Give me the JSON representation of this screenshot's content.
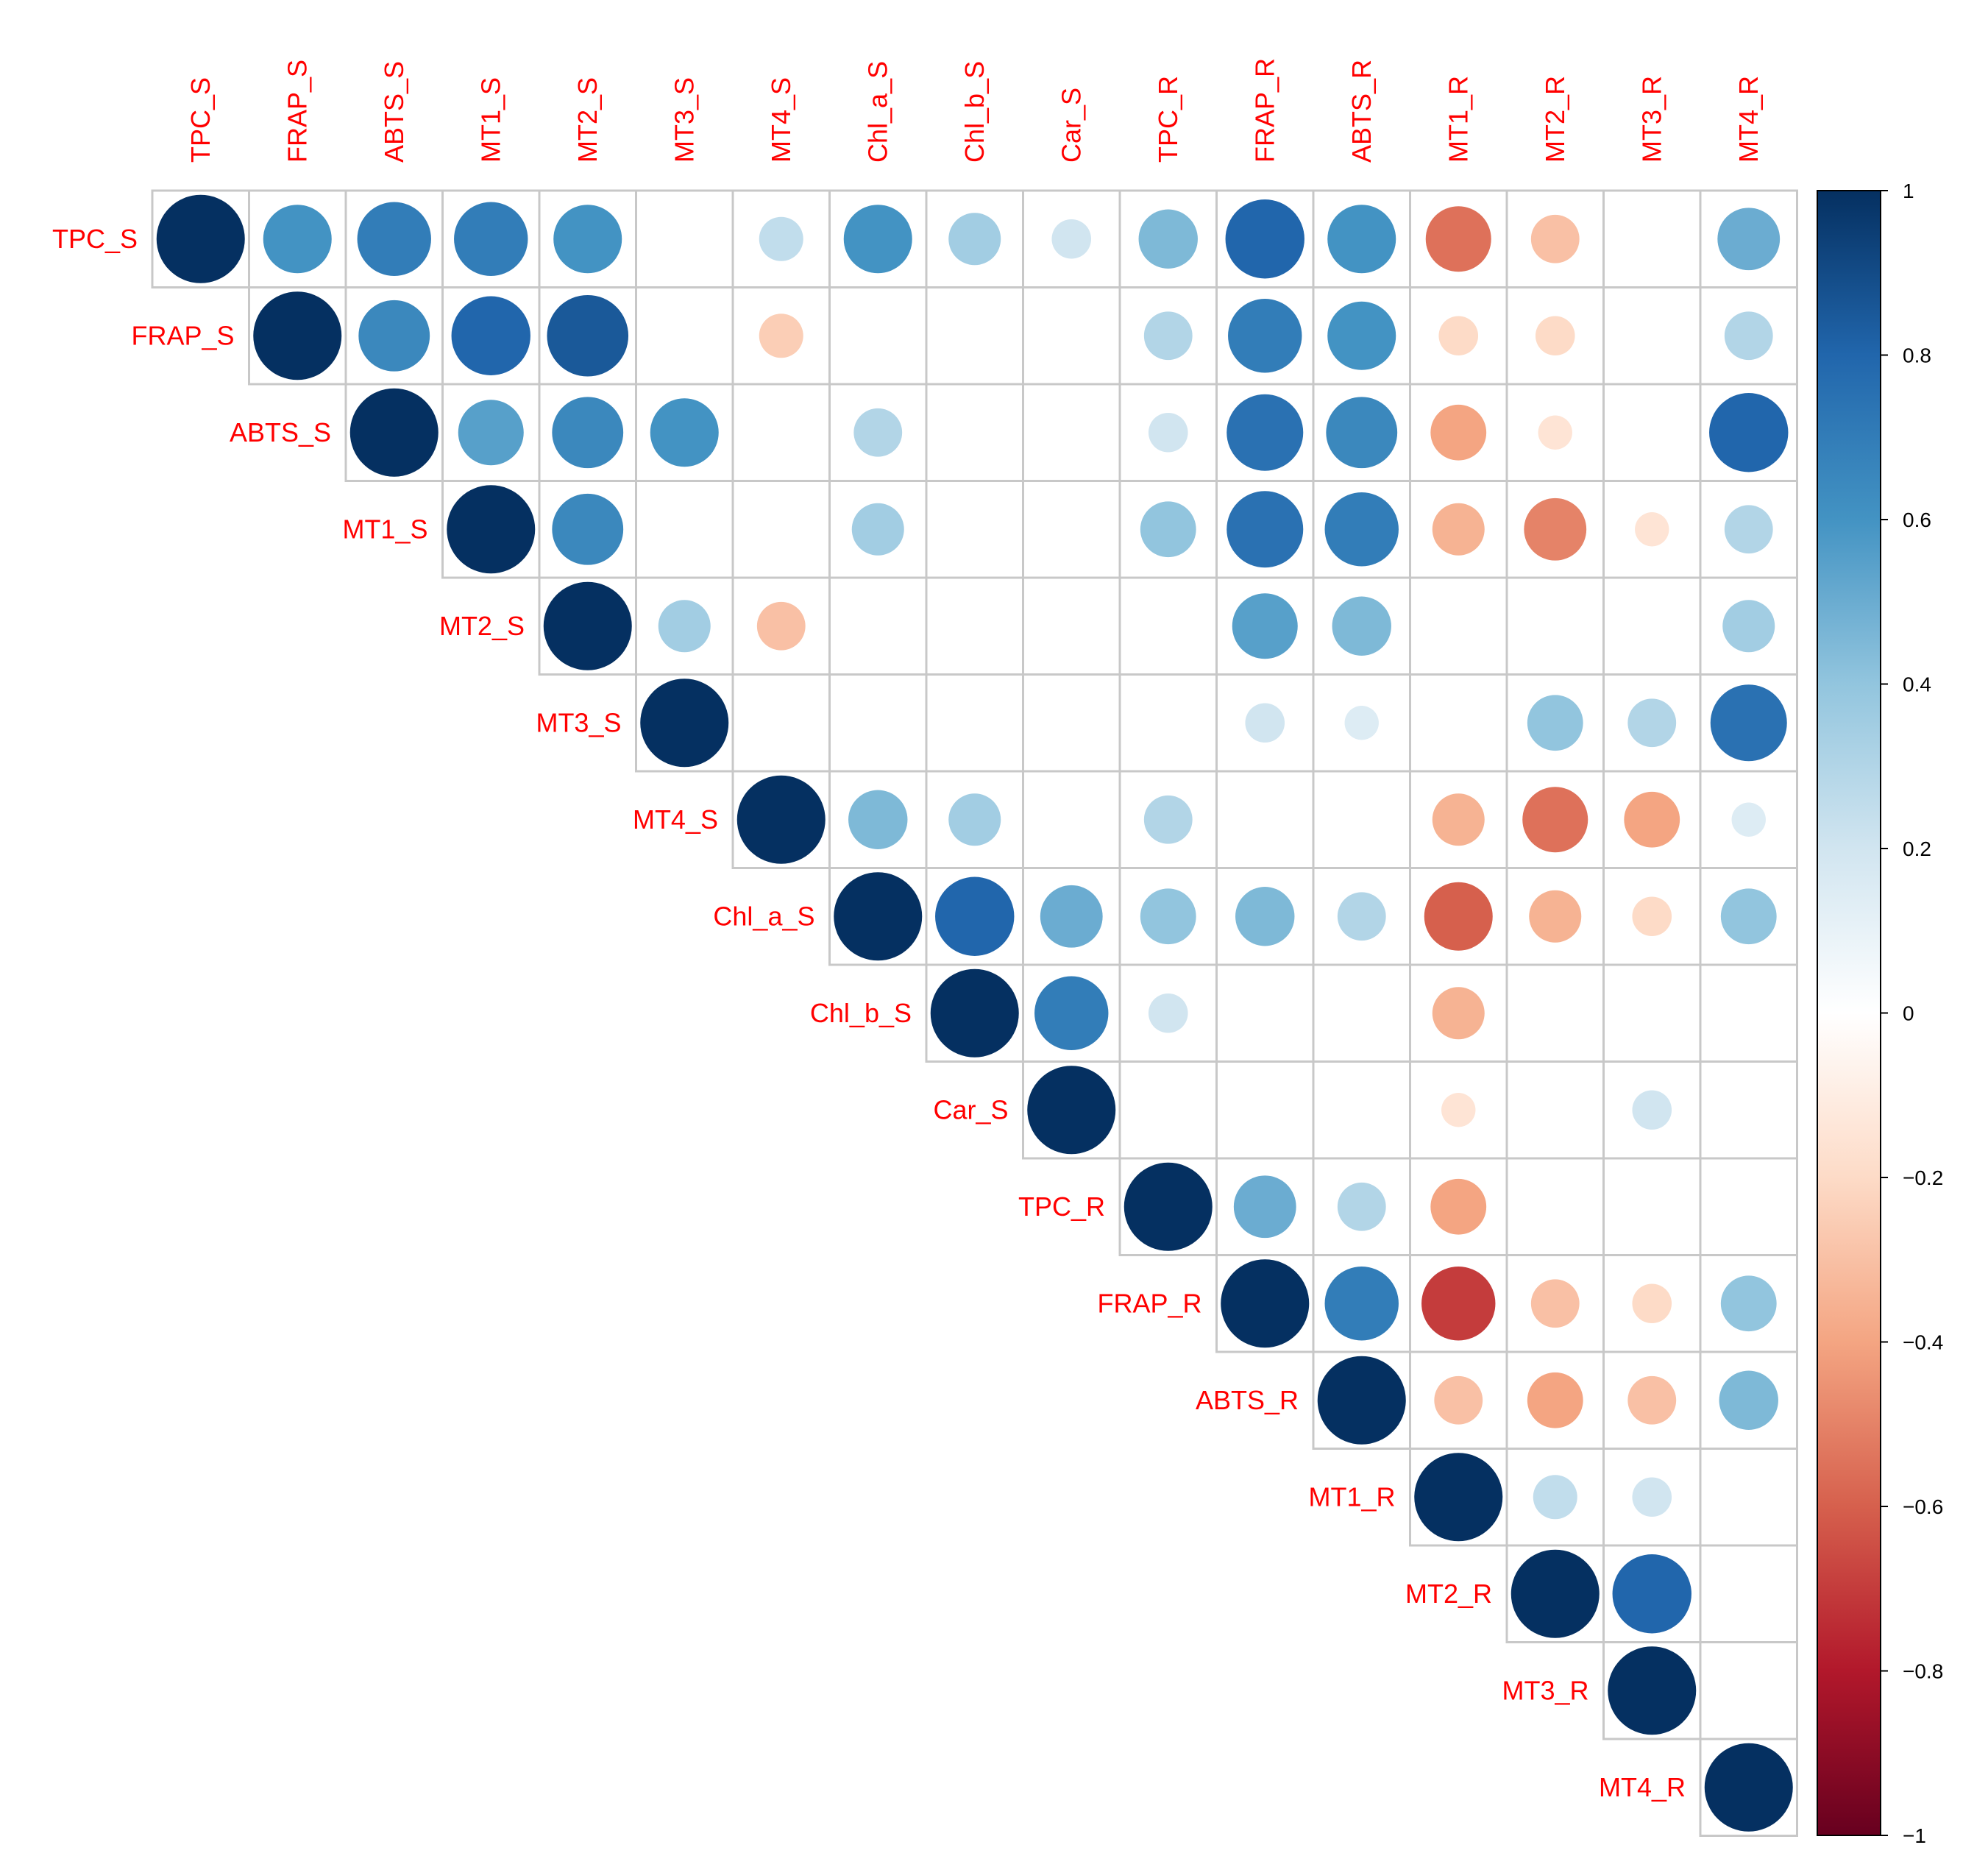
{
  "chart_data": {
    "type": "heatmap",
    "subtype": "correlation-circles-upper-triangle",
    "variables": [
      "TPC_S",
      "FRAP_S",
      "ABTS_S",
      "MT1_S",
      "MT2_S",
      "MT3_S",
      "MT4_S",
      "Chl_a_S",
      "Chl_b_S",
      "Car_S",
      "TPC_R",
      "FRAP_R",
      "ABTS_R",
      "MT1_R",
      "MT2_R",
      "MT3_R",
      "MT4_R"
    ],
    "matrix": [
      [
        1,
        0.6,
        0.7,
        0.7,
        0.6,
        null,
        0.25,
        0.6,
        0.35,
        0.2,
        0.45,
        0.8,
        0.6,
        -0.55,
        -0.3,
        null,
        0.5
      ],
      [
        null,
        1,
        0.65,
        0.8,
        0.85,
        null,
        -0.25,
        null,
        null,
        null,
        0.3,
        0.7,
        0.6,
        -0.2,
        -0.2,
        null,
        0.3
      ],
      [
        null,
        null,
        1,
        0.55,
        0.65,
        0.6,
        null,
        0.3,
        null,
        null,
        0.2,
        0.75,
        0.65,
        -0.4,
        -0.15,
        null,
        0.8
      ],
      [
        null,
        null,
        null,
        1,
        0.65,
        null,
        null,
        0.35,
        null,
        null,
        0.4,
        0.75,
        0.7,
        -0.35,
        -0.5,
        -0.15,
        0.3
      ],
      [
        null,
        null,
        null,
        null,
        1,
        0.35,
        -0.3,
        null,
        null,
        null,
        null,
        0.55,
        0.45,
        null,
        null,
        null,
        0.35
      ],
      [
        null,
        null,
        null,
        null,
        null,
        1,
        null,
        null,
        null,
        null,
        null,
        0.2,
        0.15,
        null,
        0.4,
        0.3,
        0.75
      ],
      [
        null,
        null,
        null,
        null,
        null,
        null,
        1,
        0.45,
        0.35,
        null,
        0.3,
        null,
        null,
        -0.35,
        -0.55,
        -0.4,
        0.15
      ],
      [
        null,
        null,
        null,
        null,
        null,
        null,
        null,
        1,
        0.8,
        0.5,
        0.4,
        0.45,
        0.3,
        -0.6,
        -0.35,
        -0.2,
        0.4
      ],
      [
        null,
        null,
        null,
        null,
        null,
        null,
        null,
        null,
        1,
        0.7,
        0.2,
        null,
        null,
        -0.35,
        null,
        null,
        null
      ],
      [
        null,
        null,
        null,
        null,
        null,
        null,
        null,
        null,
        null,
        1,
        null,
        null,
        null,
        -0.15,
        null,
        0.2,
        null
      ],
      [
        null,
        null,
        null,
        null,
        null,
        null,
        null,
        null,
        null,
        null,
        1,
        0.5,
        0.3,
        -0.4,
        null,
        null,
        null
      ],
      [
        null,
        null,
        null,
        null,
        null,
        null,
        null,
        null,
        null,
        null,
        null,
        1,
        0.7,
        -0.7,
        -0.3,
        -0.2,
        0.4
      ],
      [
        null,
        null,
        null,
        null,
        null,
        null,
        null,
        null,
        null,
        null,
        null,
        null,
        1,
        -0.3,
        -0.4,
        -0.3,
        0.45
      ],
      [
        null,
        null,
        null,
        null,
        null,
        null,
        null,
        null,
        null,
        null,
        null,
        null,
        null,
        1,
        0.25,
        0.2,
        null
      ],
      [
        null,
        null,
        null,
        null,
        null,
        null,
        null,
        null,
        null,
        null,
        null,
        null,
        null,
        null,
        1,
        0.8,
        null
      ],
      [
        null,
        null,
        null,
        null,
        null,
        null,
        null,
        null,
        null,
        null,
        null,
        null,
        null,
        null,
        null,
        1,
        null
      ],
      [
        null,
        null,
        null,
        null,
        null,
        null,
        null,
        null,
        null,
        null,
        null,
        null,
        null,
        null,
        null,
        null,
        1
      ]
    ],
    "color_scale": {
      "range": [
        -1,
        1
      ],
      "tick_labels": [
        "1",
        "0.8",
        "0.6",
        "0.4",
        "0.2",
        "0",
        "−0.2",
        "−0.4",
        "−0.6",
        "−0.8",
        "−1"
      ],
      "stops": [
        "#67001F",
        "#B2182B",
        "#D6604D",
        "#F4A582",
        "#FDDBC7",
        "#FFFFFF",
        "#D1E5F0",
        "#92C5DE",
        "#4393C3",
        "#2166AC",
        "#053061"
      ]
    },
    "legend_position": "right",
    "label_color": "#FF0000",
    "grid_color": "#C8C8C8"
  }
}
